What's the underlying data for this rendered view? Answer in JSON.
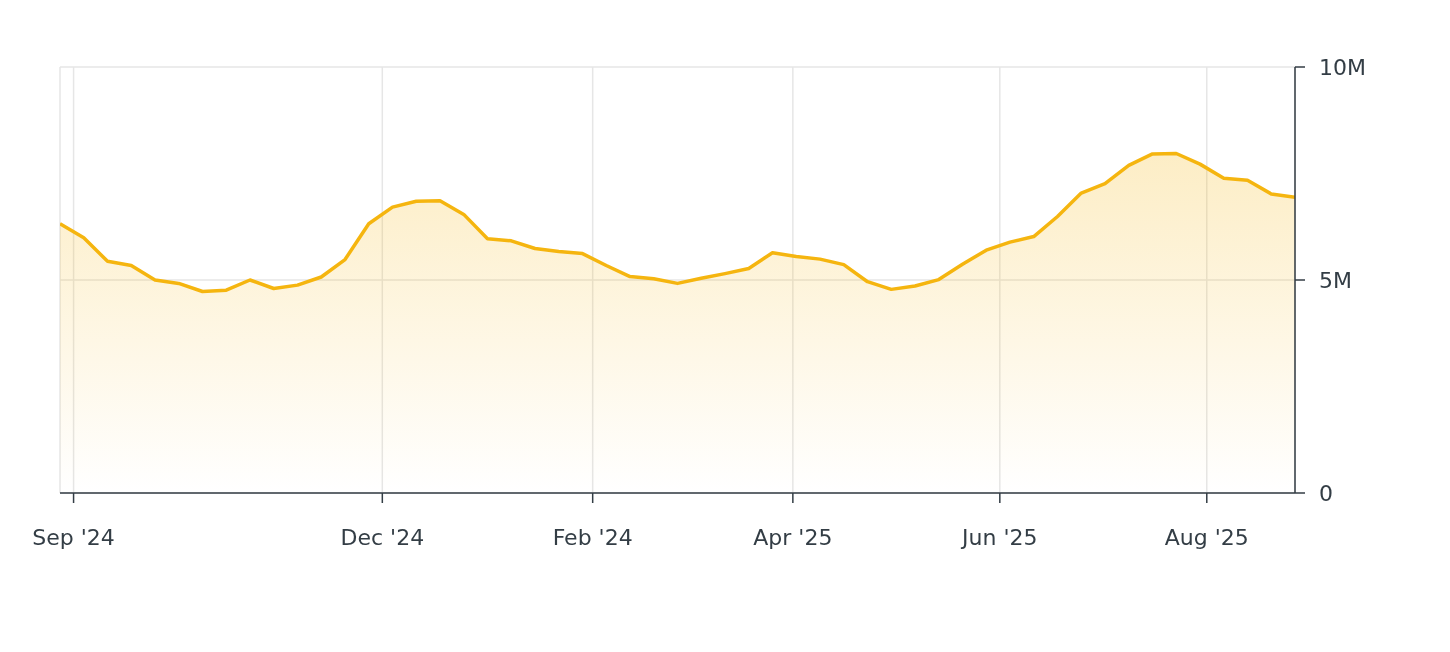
{
  "chart_data": {
    "type": "area",
    "x": [
      "2024-08-28",
      "2024-09-04",
      "2024-09-11",
      "2024-09-18",
      "2024-09-25",
      "2024-10-02",
      "2024-10-09",
      "2024-10-16",
      "2024-10-23",
      "2024-10-30",
      "2024-11-06",
      "2024-11-13",
      "2024-11-20",
      "2024-11-27",
      "2024-12-04",
      "2024-12-11",
      "2024-12-18",
      "2024-12-25",
      "2025-01-01",
      "2025-01-08",
      "2025-01-15",
      "2025-01-22",
      "2025-01-29",
      "2025-02-05",
      "2025-02-12",
      "2025-02-19",
      "2025-02-26",
      "2025-03-05",
      "2025-03-12",
      "2025-03-19",
      "2025-03-26",
      "2025-04-02",
      "2025-04-09",
      "2025-04-16",
      "2025-04-23",
      "2025-04-30",
      "2025-05-07",
      "2025-05-14",
      "2025-05-21",
      "2025-05-28",
      "2025-06-04",
      "2025-06-11",
      "2025-06-18",
      "2025-06-25",
      "2025-07-02",
      "2025-07-09",
      "2025-07-16",
      "2025-07-23",
      "2025-07-30",
      "2025-08-06",
      "2025-08-13",
      "2025-08-20",
      "2025-08-27"
    ],
    "series": [
      {
        "color": "#f5b50f",
        "values": [
          6320000,
          5990000,
          5440000,
          5340000,
          5000000,
          4920000,
          4730000,
          4760000,
          5000000,
          4800000,
          4880000,
          5070000,
          5480000,
          6320000,
          6710000,
          6850000,
          6860000,
          6540000,
          5970000,
          5920000,
          5740000,
          5670000,
          5620000,
          5340000,
          5080000,
          5030000,
          4920000,
          5040000,
          5150000,
          5270000,
          5640000,
          5550000,
          5490000,
          5360000,
          4960000,
          4780000,
          4860000,
          5010000,
          5370000,
          5700000,
          5890000,
          6020000,
          6490000,
          7040000,
          7260000,
          7690000,
          7960000,
          7970000,
          7720000,
          7390000,
          7340000,
          7020000,
          6940000
        ]
      }
    ],
    "xlim": [
      "2024-08-28",
      "2025-08-27"
    ],
    "xticks": [
      {
        "value": "2024-09-01",
        "label": "Sep '24"
      },
      {
        "value": "2024-12-01",
        "label": "Dec '24"
      },
      {
        "value": "2025-02-01",
        "label": "Feb '24"
      },
      {
        "value": "2025-04-01",
        "label": "Apr '25"
      },
      {
        "value": "2025-06-01",
        "label": "Jun '25"
      },
      {
        "value": "2025-08-01",
        "label": "Aug '25"
      }
    ],
    "ylim": [
      0,
      10000000
    ],
    "yticks": [
      {
        "value": 0,
        "label": "0"
      },
      {
        "value": 5000000,
        "label": "5M"
      },
      {
        "value": 10000000,
        "label": "10M"
      }
    ],
    "grid": true
  }
}
